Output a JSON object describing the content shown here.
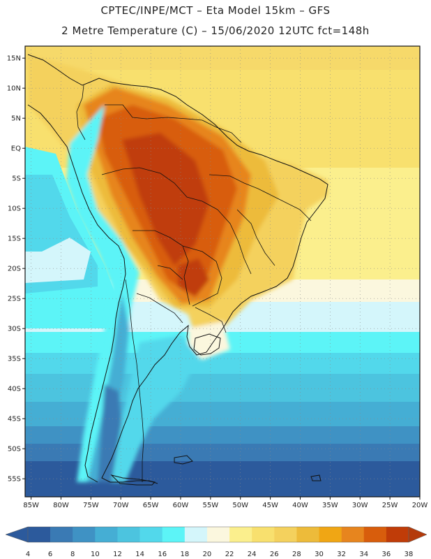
{
  "header": {
    "title_line1": "CPTEC/INPE/MCT –   Eta Model 15km – GFS",
    "title_line2": "2 Metre Temperature (C) – 15/06/2020 12UTC fct=148h"
  },
  "map": {
    "lon_range": [
      -86,
      -20
    ],
    "lat_range": [
      -58,
      17
    ],
    "lat_labels": [
      "15N",
      "10N",
      "5N",
      "EQ",
      "5S",
      "10S",
      "15S",
      "20S",
      "25S",
      "30S",
      "35S",
      "40S",
      "45S",
      "50S",
      "55S"
    ],
    "lon_labels": [
      "85W",
      "80W",
      "75W",
      "70W",
      "65W",
      "60W",
      "55W",
      "50W",
      "45W",
      "40W",
      "35W",
      "30W",
      "25W",
      "20W"
    ]
  },
  "legend": {
    "ticks": [
      "4",
      "6",
      "8",
      "10",
      "12",
      "14",
      "16",
      "18",
      "20",
      "22",
      "24",
      "26",
      "28",
      "30",
      "32",
      "34",
      "36",
      "38"
    ],
    "colors": [
      "#2c5a9c",
      "#3a7ab4",
      "#3f92c4",
      "#45aed4",
      "#4cc4df",
      "#52d8eb",
      "#5cf4f7",
      "#d4f6fb",
      "#fbf7de",
      "#fbef8d",
      "#f8e06e",
      "#f4d15d",
      "#edbb3a",
      "#f0a614",
      "#e7851e",
      "#d85d0c",
      "#c03c08"
    ],
    "low_color": "#2c5a9c",
    "high_color": "#b43a0a"
  },
  "colors": {
    "coast": "#111111",
    "grid": "#8a8a8a"
  }
}
